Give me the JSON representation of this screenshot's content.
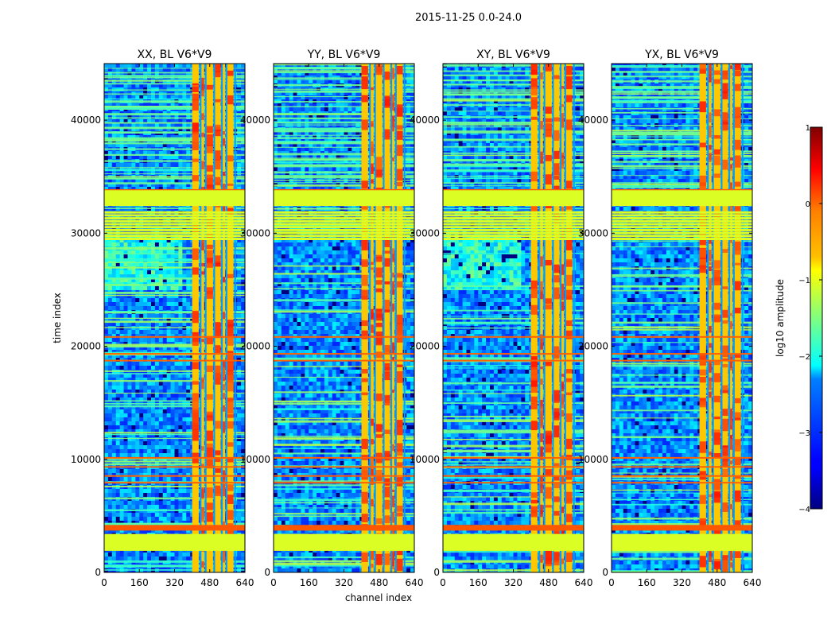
{
  "chart_data": {
    "type": "heatmap",
    "suptitle": "2015-11-25 0.0-24.0",
    "xlabel": "channel index",
    "ylabel": "time index",
    "xlim": [
      0,
      640
    ],
    "ylim": [
      0,
      45000
    ],
    "xticks": [
      "0",
      "160",
      "320",
      "480",
      "640"
    ],
    "xtick_values": [
      0,
      160,
      320,
      480,
      640
    ],
    "yticks": [
      "0",
      "10000",
      "20000",
      "30000",
      "40000"
    ],
    "ytick_values": [
      0,
      10000,
      20000,
      30000,
      40000
    ],
    "colormap": "jet",
    "panels": [
      {
        "title": "XX, BL V6*V9",
        "rfi_band": [
          400,
          600
        ]
      },
      {
        "title": "YY, BL V6*V9",
        "rfi_band": [
          400,
          600
        ]
      },
      {
        "title": "XY, BL V6*V9",
        "rfi_band": [
          400,
          600
        ]
      },
      {
        "title": "YX, BL V6*V9",
        "rfi_band": [
          400,
          600
        ]
      }
    ],
    "flagged_time_ranges": [
      [
        1900,
        3400
      ],
      [
        32400,
        33800
      ]
    ],
    "orange_time_rows": [
      3900,
      4100,
      8000,
      8600,
      9400,
      10200,
      18800,
      19400,
      20900,
      33900
    ],
    "colorbar": {
      "label": "log10 amplitude",
      "min": -4,
      "max": 1,
      "ticks": [
        "1",
        "0",
        "−1",
        "−2",
        "−3",
        "−4"
      ],
      "tick_values": [
        1,
        0,
        -1,
        -2,
        -3,
        -4
      ]
    }
  }
}
